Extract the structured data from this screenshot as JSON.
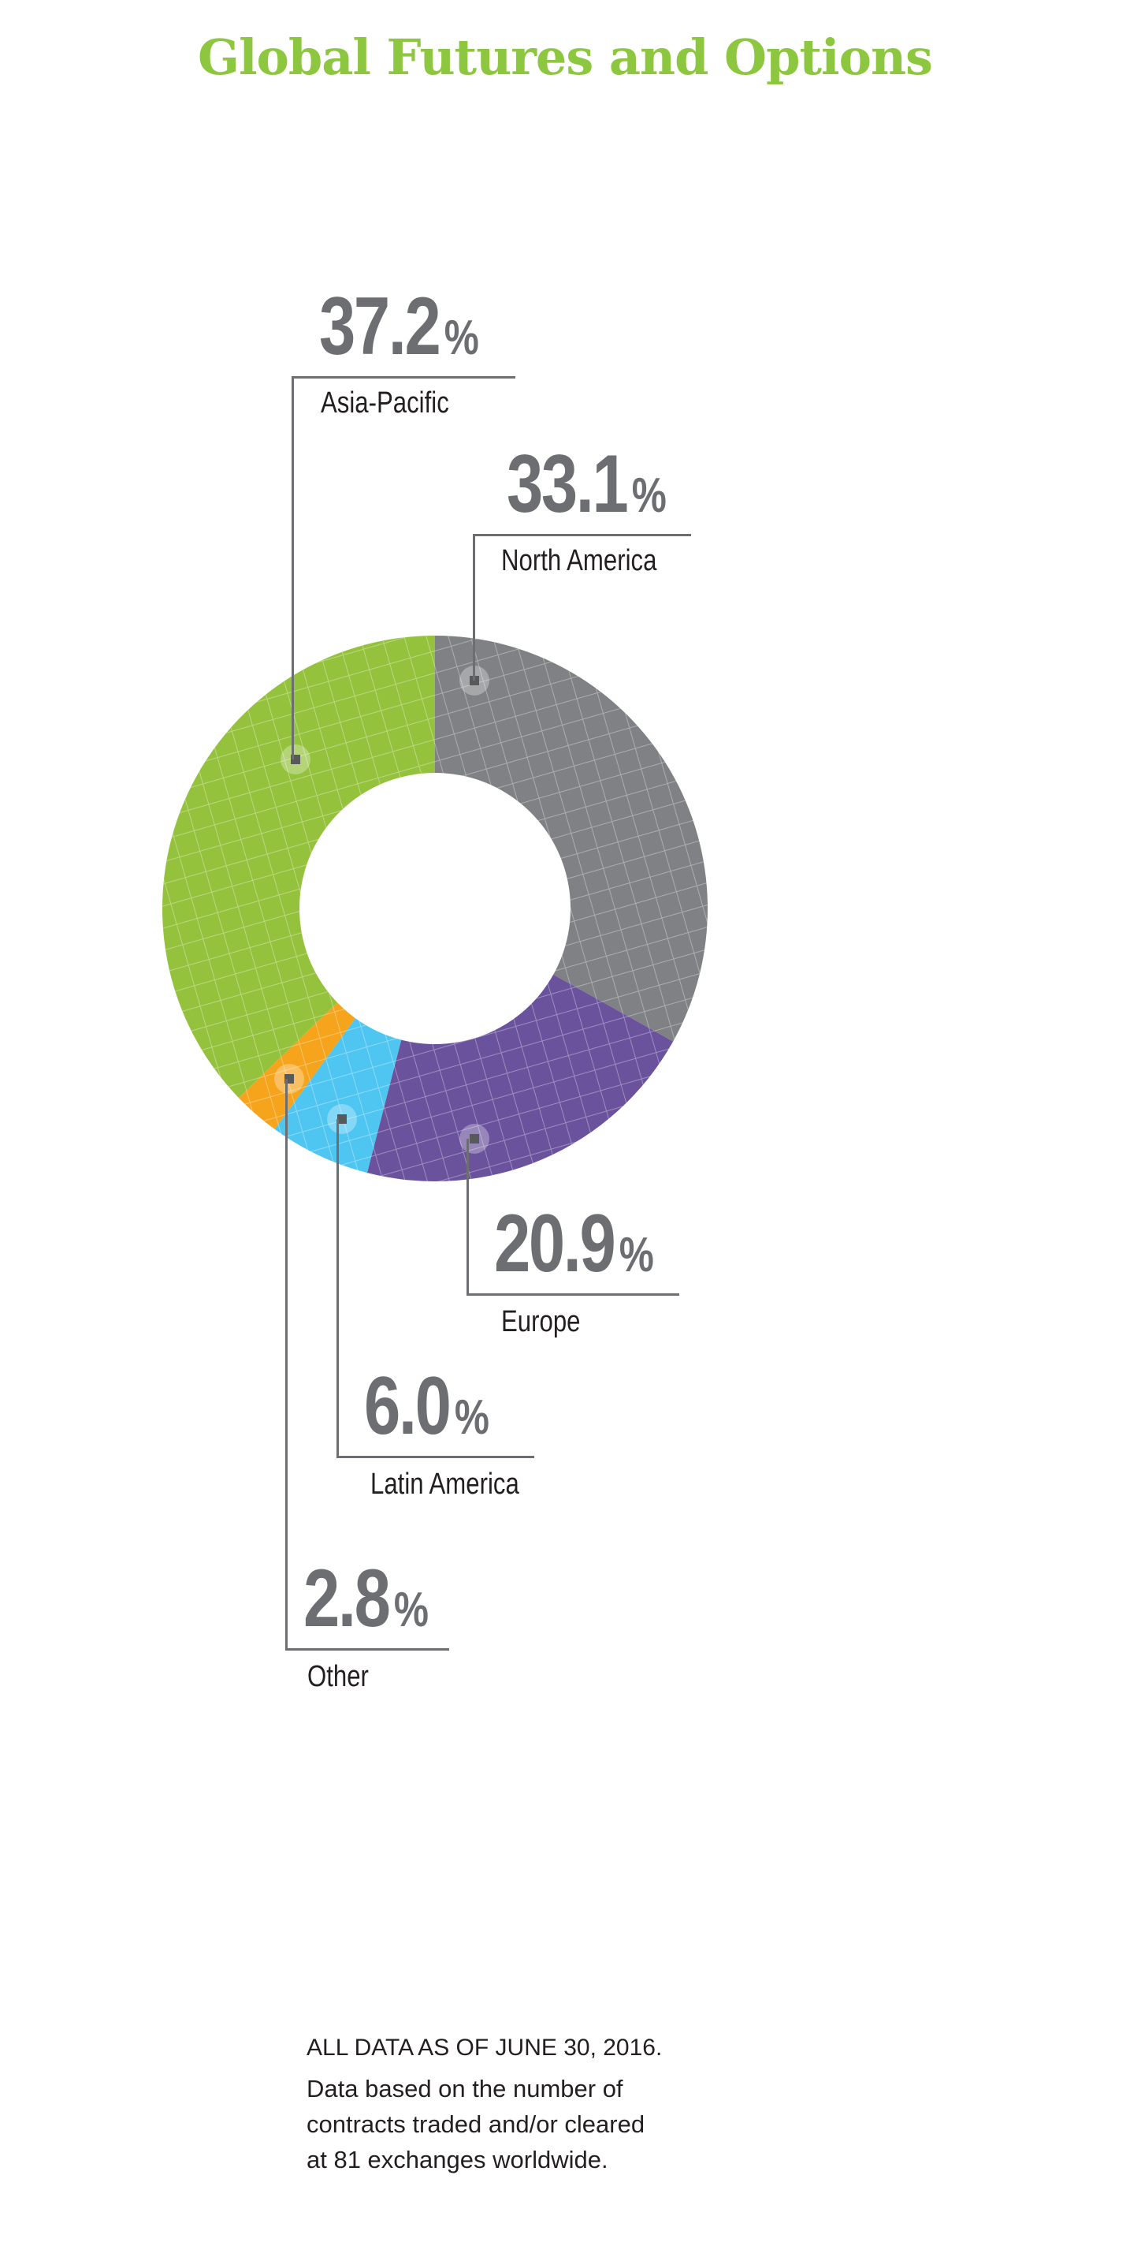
{
  "title": "Global Futures and Options",
  "colors": {
    "title": "#8dc63f",
    "text": "#6d6e71"
  },
  "chart_data": {
    "type": "pie",
    "variant": "donut",
    "title": "Global Futures and Options",
    "start": "top",
    "direction": "clockwise",
    "slices": [
      {
        "label": "North America",
        "value": 33.1,
        "display": "33.1",
        "color": "#808184"
      },
      {
        "label": "Europe",
        "value": 20.9,
        "display": "20.9",
        "color": "#6a529d"
      },
      {
        "label": "Latin America",
        "value": 6.0,
        "display": "6.0",
        "color": "#4fc6f2"
      },
      {
        "label": "Other",
        "value": 2.8,
        "display": "2.8",
        "color": "#f7a41d"
      },
      {
        "label": "Asia-Pacific",
        "value": 37.2,
        "display": "37.2",
        "color": "#95c23d"
      }
    ],
    "unit": "%"
  },
  "footnote": {
    "heading": "ALL DATA AS OF JUNE 30, 2016.",
    "lines": [
      "Data based on the number of",
      "contracts traded and/or cleared",
      "at 81 exchanges worldwide."
    ]
  }
}
